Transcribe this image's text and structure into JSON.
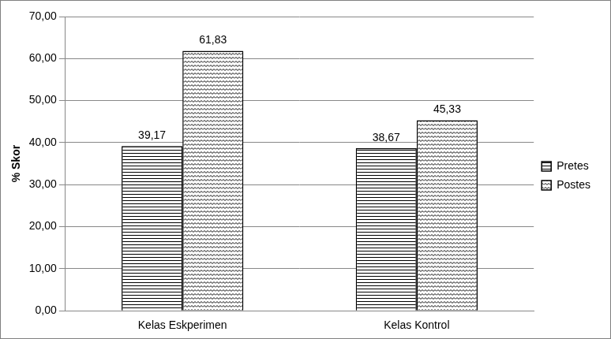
{
  "chart_data": {
    "type": "bar",
    "categories": [
      "Kelas Eskperimen",
      "Kelas Kontrol"
    ],
    "series": [
      {
        "name": "Pretes",
        "color": "#000000",
        "values": [
          39.17,
          38.67
        ],
        "value_labels": [
          "39,17",
          "38,67"
        ]
      },
      {
        "name": "Postes",
        "color": "#000000",
        "values": [
          61.83,
          45.33
        ],
        "value_labels": [
          "61,83",
          "45,33"
        ]
      }
    ],
    "y_label": "% Skor",
    "ylim": [
      0,
      70
    ],
    "yticks": [
      {
        "value": 0,
        "label": "0,00"
      },
      {
        "value": 10,
        "label": "10,00"
      },
      {
        "value": 20,
        "label": "20,00"
      },
      {
        "value": 30,
        "label": "30,00"
      },
      {
        "value": 40,
        "label": "40,00"
      },
      {
        "value": 50,
        "label": "50,00"
      },
      {
        "value": 60,
        "label": "60,00"
      },
      {
        "value": 70,
        "label": "70,00"
      }
    ],
    "grid": true,
    "legend": "right",
    "data_labels": true
  }
}
